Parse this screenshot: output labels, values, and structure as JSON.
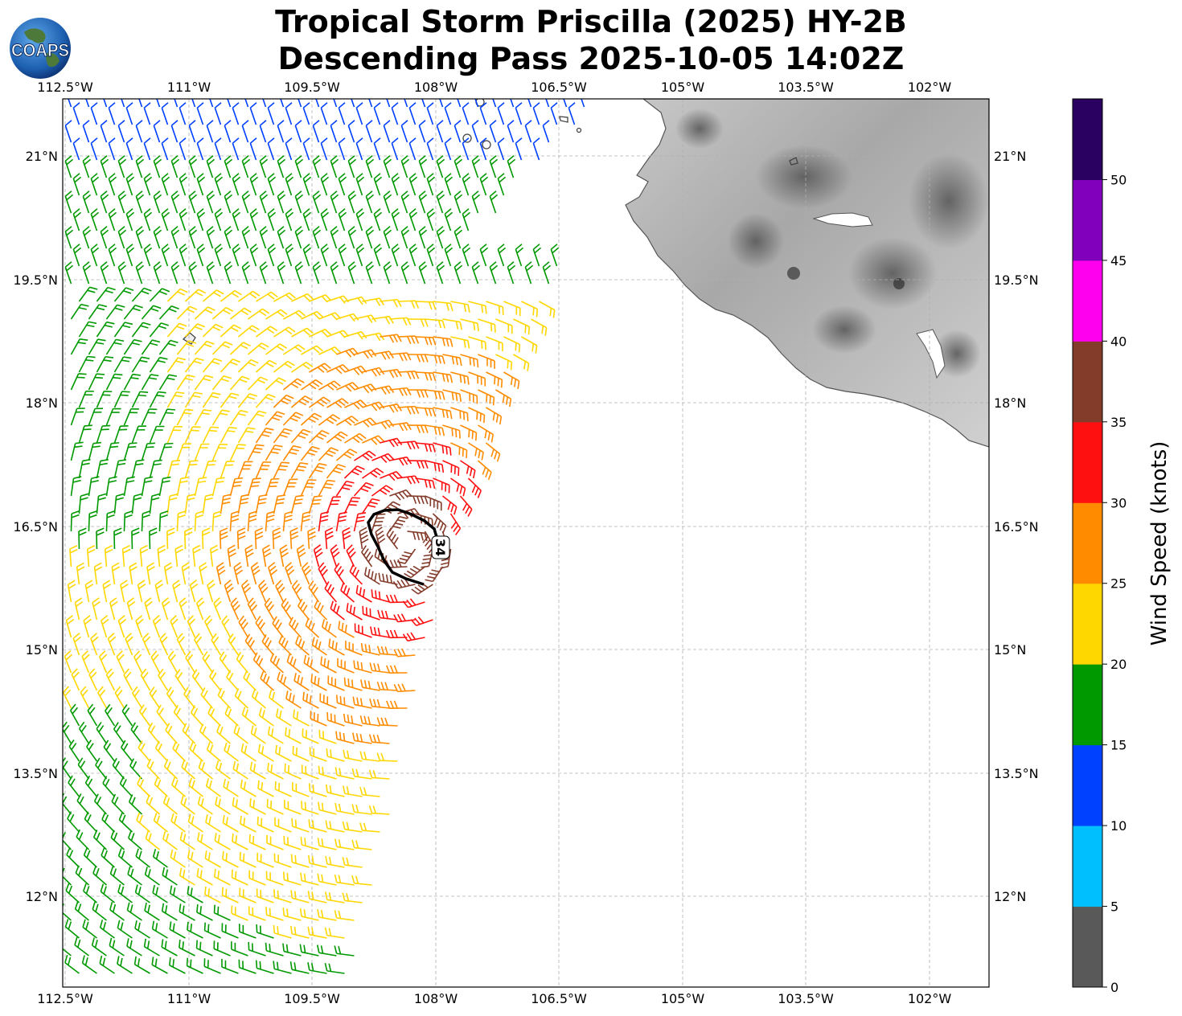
{
  "title": {
    "line1": "Tropical Storm Priscilla (2025) HY-2B",
    "line2": "Descending Pass 2025-10-05 14:02Z"
  },
  "logo": {
    "text": "COAPS",
    "icon": "globe-icon"
  },
  "map": {
    "lon_range": [
      -112.5,
      -101.25
    ],
    "lat_range": [
      10.8,
      21.6
    ],
    "lon_ticks": [
      "112.5°W",
      "111°W",
      "109.5°W",
      "108°W",
      "106.5°W",
      "105°W",
      "103.5°W",
      "102°W"
    ],
    "lat_ticks": [
      "21°N",
      "19.5°N",
      "18°N",
      "16.5°N",
      "15°N",
      "13.5°N",
      "12°N"
    ],
    "contour_label": "34",
    "colors": {
      "land_light": "#f4f4f4",
      "land_dark": "#7a7a7a",
      "coast": "#555555",
      "grid": "#b0b0b0",
      "contour": "#000000"
    }
  },
  "colorbar": {
    "label": "Wind Speed (knots)",
    "ticks": [
      "0",
      "5",
      "10",
      "15",
      "20",
      "25",
      "30",
      "35",
      "40",
      "45",
      "50"
    ],
    "colors": [
      "#595959",
      "#00bfff",
      "#0040ff",
      "#009900",
      "#ffd700",
      "#ff8c00",
      "#ff1010",
      "#833b2a",
      "#ff00ee",
      "#8000bb",
      "#2a0060"
    ]
  }
}
